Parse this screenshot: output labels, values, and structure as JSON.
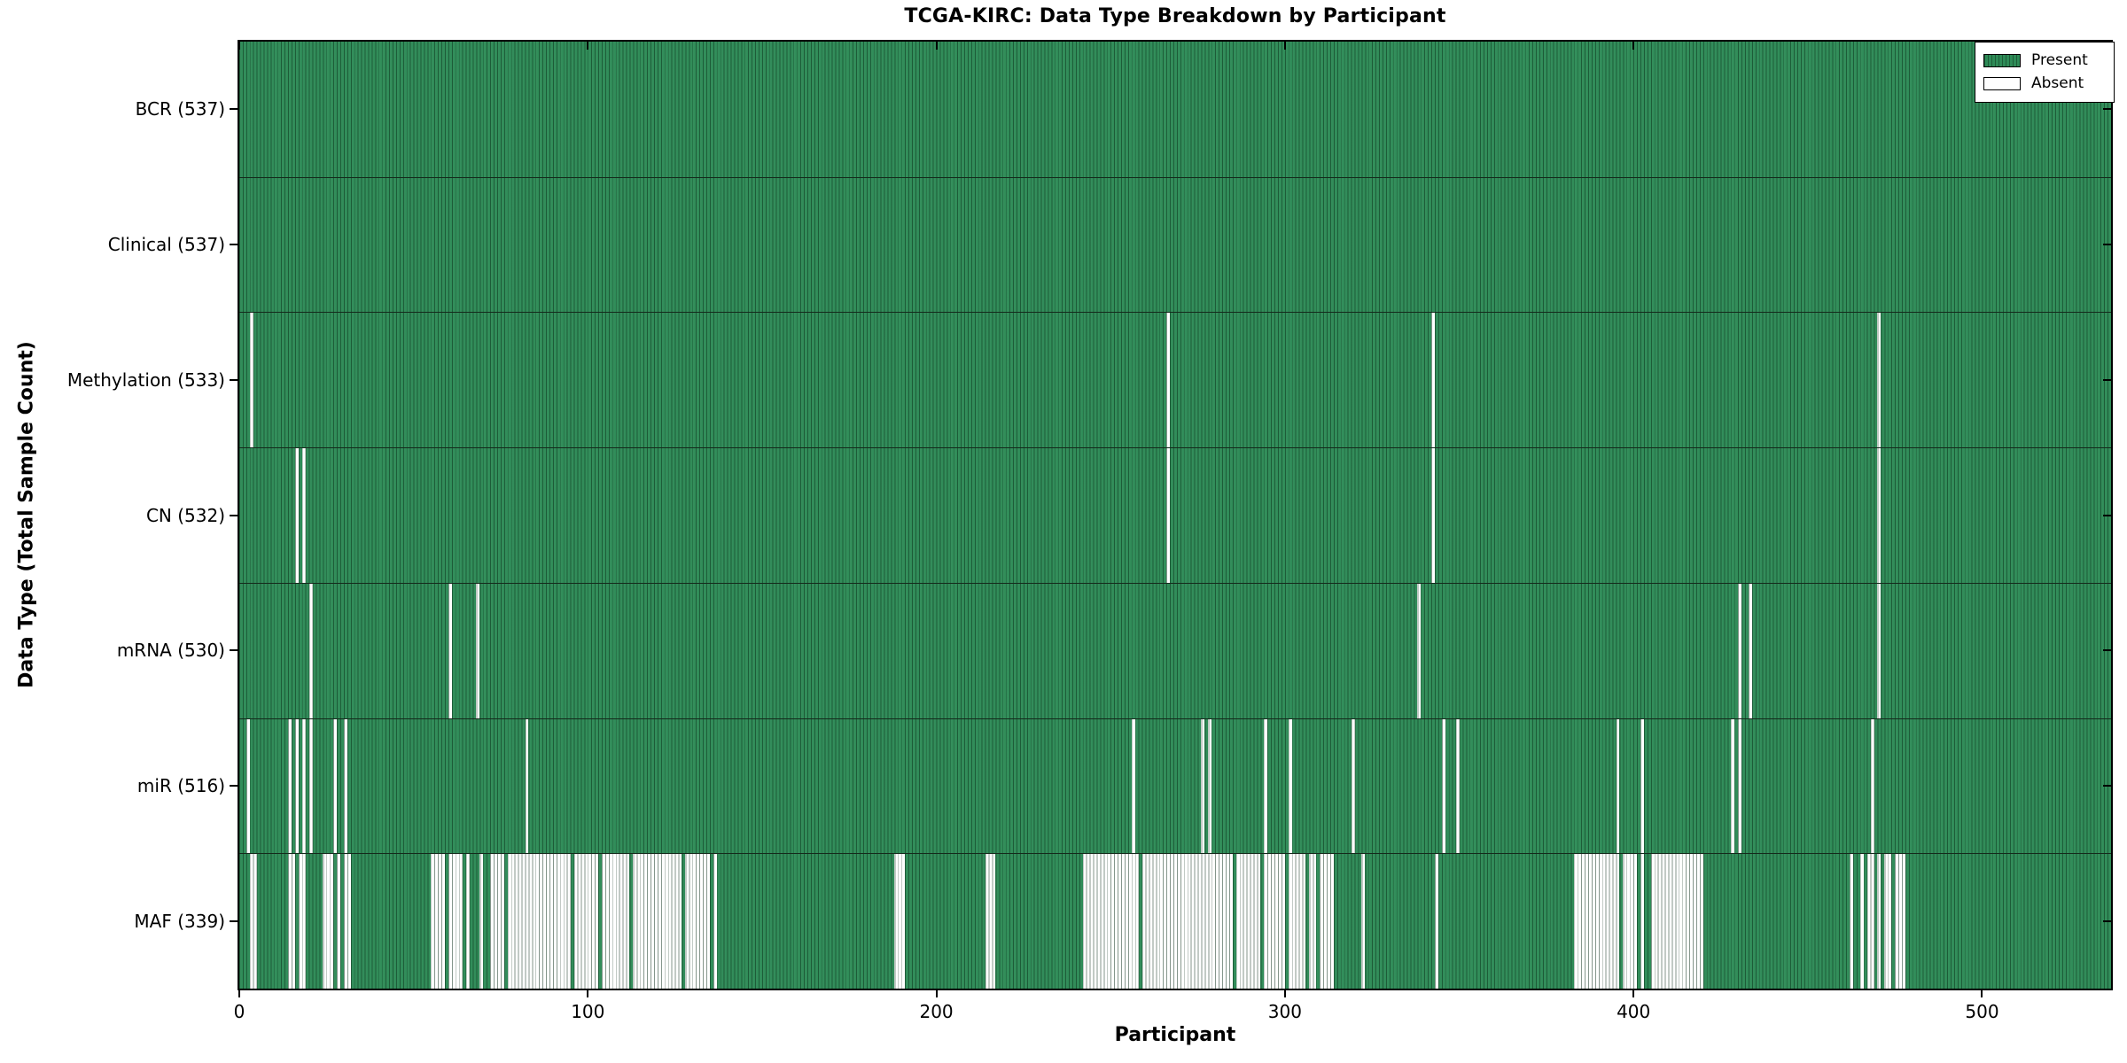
{
  "title": "TCGA-KIRC: Data Type Breakdown by Participant",
  "xlabel": "Participant",
  "ylabel": "Data Type (Total Sample Count)",
  "legend": {
    "position": "upper right",
    "present_label": "Present",
    "absent_label": "Absent"
  },
  "colors": {
    "present": "#2e8b57",
    "absent": "#ffffff",
    "bar_edge": "rgba(12,45,25,0.5)",
    "spine": "#000000",
    "text": "#000000",
    "background": "#ffffff"
  },
  "x_ticks": [
    0,
    100,
    200,
    300,
    400,
    500
  ],
  "chart_data": {
    "type": "heatmap",
    "title": "TCGA-KIRC: Data Type Breakdown by Participant",
    "xlabel": "Participant",
    "ylabel": "Data Type (Total Sample Count)",
    "x_range": [
      0,
      537
    ],
    "n_participants": 537,
    "grid": false,
    "legend": [
      "Present",
      "Absent"
    ],
    "legend_position": "upper right",
    "value_encoding": "green cell = data type present for participant, white cell = absent",
    "rows": [
      {
        "name": "BCR",
        "label": "BCR (537)",
        "total": 537,
        "absent_ranges": []
      },
      {
        "name": "Clinical",
        "label": "Clinical (537)",
        "total": 537,
        "absent_ranges": []
      },
      {
        "name": "Methylation",
        "label": "Methylation (533)",
        "total": 533,
        "absent_ranges": [
          [
            3,
            3
          ],
          [
            266,
            266
          ],
          [
            342,
            342
          ],
          [
            470,
            470
          ]
        ]
      },
      {
        "name": "CN",
        "label": "CN (532)",
        "total": 532,
        "absent_ranges": [
          [
            16,
            16
          ],
          [
            18,
            18
          ],
          [
            266,
            266
          ],
          [
            342,
            342
          ],
          [
            470,
            470
          ]
        ]
      },
      {
        "name": "mRNA",
        "label": "mRNA (530)",
        "total": 530,
        "absent_ranges": [
          [
            20,
            20
          ],
          [
            60,
            60
          ],
          [
            68,
            68
          ],
          [
            338,
            338
          ],
          [
            430,
            430
          ],
          [
            433,
            433
          ],
          [
            470,
            470
          ]
        ]
      },
      {
        "name": "miR",
        "label": "miR (516)",
        "total": 516,
        "absent_ranges": [
          [
            2,
            2
          ],
          [
            14,
            14
          ],
          [
            16,
            16
          ],
          [
            18,
            18
          ],
          [
            20,
            20
          ],
          [
            27,
            27
          ],
          [
            30,
            30
          ],
          [
            82,
            82
          ],
          [
            256,
            256
          ],
          [
            276,
            276
          ],
          [
            278,
            278
          ],
          [
            294,
            294
          ],
          [
            301,
            301
          ],
          [
            319,
            319
          ],
          [
            345,
            345
          ],
          [
            349,
            349
          ],
          [
            395,
            395
          ],
          [
            402,
            402
          ],
          [
            428,
            428
          ],
          [
            430,
            430
          ],
          [
            468,
            468
          ]
        ]
      },
      {
        "name": "MAF",
        "label": "MAF (339)",
        "total": 339,
        "absent_ranges": [
          [
            3,
            4
          ],
          [
            14,
            15
          ],
          [
            17,
            18
          ],
          [
            24,
            26
          ],
          [
            28,
            28
          ],
          [
            30,
            31
          ],
          [
            55,
            58
          ],
          [
            60,
            63
          ],
          [
            65,
            65
          ],
          [
            69,
            69
          ],
          [
            72,
            75
          ],
          [
            77,
            94
          ],
          [
            96,
            102
          ],
          [
            104,
            111
          ],
          [
            113,
            126
          ],
          [
            128,
            134
          ],
          [
            136,
            136
          ],
          [
            188,
            190
          ],
          [
            214,
            216
          ],
          [
            242,
            257
          ],
          [
            259,
            284
          ],
          [
            286,
            292
          ],
          [
            294,
            299
          ],
          [
            301,
            305
          ],
          [
            307,
            308
          ],
          [
            310,
            313
          ],
          [
            322,
            322
          ],
          [
            343,
            343
          ],
          [
            383,
            395
          ],
          [
            397,
            400
          ],
          [
            402,
            402
          ],
          [
            405,
            419
          ],
          [
            462,
            462
          ],
          [
            465,
            465
          ],
          [
            467,
            468
          ],
          [
            470,
            470
          ],
          [
            472,
            473
          ],
          [
            475,
            477
          ]
        ]
      }
    ]
  }
}
